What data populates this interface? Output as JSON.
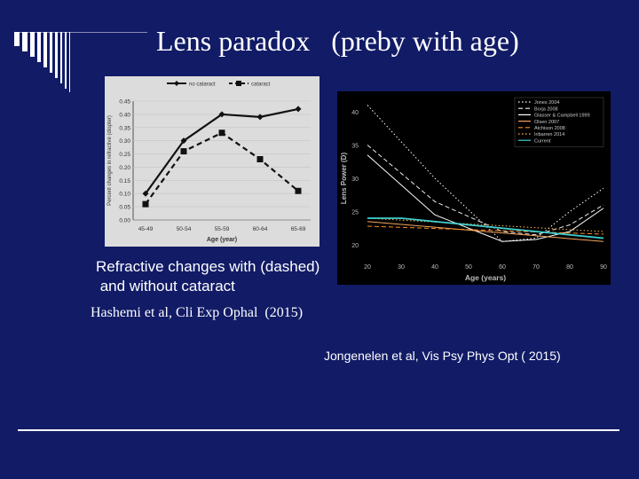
{
  "title": "Lens paradox   (preby with age)",
  "caption": {
    "line1": "Refractive changes with (dashed)",
    "line2": " and without cataract"
  },
  "citation_left": "Hashemi et al, Cli Exp Ophal  (2015)",
  "citation_right": "Jongenelen et al, Vis Psy Phys Opt ( 2015)",
  "colors": {
    "background": "#111b66",
    "text": "#ffffff",
    "chart1_bg": "#dcdcdc",
    "chart2_bg": "#000000"
  },
  "chart_data": [
    {
      "type": "line",
      "title": "",
      "xlabel": "Age (year)",
      "ylabel": "Percent changes in refractive (diopter)",
      "categories": [
        "45-49",
        "50-54",
        "55-59",
        "60-64",
        "65-69"
      ],
      "ylim": [
        0,
        0.45
      ],
      "yticks": [
        0.0,
        0.05,
        0.1,
        0.15,
        0.2,
        0.25,
        0.3,
        0.35,
        0.4,
        0.45
      ],
      "legend_position": "top",
      "series": [
        {
          "name": "no cataract",
          "style": "solid",
          "marker": "diamond",
          "color": "#111111",
          "values": [
            0.1,
            0.3,
            0.4,
            0.39,
            0.42
          ]
        },
        {
          "name": "cataract",
          "style": "dashed",
          "marker": "square",
          "color": "#111111",
          "values": [
            0.06,
            0.26,
            0.33,
            0.23,
            0.11
          ]
        }
      ]
    },
    {
      "type": "line",
      "title": "",
      "xlabel": "Age (years)",
      "ylabel": "Lens Power (D)",
      "xlim": [
        20,
        90
      ],
      "xticks": [
        20,
        30,
        40,
        50,
        60,
        70,
        80,
        90
      ],
      "ylim": [
        18,
        42
      ],
      "yticks": [
        20,
        25,
        30,
        35,
        40
      ],
      "legend_position": "top-right",
      "series": [
        {
          "name": "Jones 2004",
          "color": "#ffffff",
          "style": "dotted",
          "x": [
            20,
            40,
            60,
            70,
            80,
            90
          ],
          "y": [
            41,
            30,
            20.5,
            21,
            25,
            28.5
          ]
        },
        {
          "name": "Borja 2008",
          "color": "#eeeeee",
          "style": "dashed",
          "x": [
            20,
            40,
            60,
            70,
            80,
            90
          ],
          "y": [
            35,
            26.5,
            22,
            21.5,
            23,
            26
          ]
        },
        {
          "name": "Glasser & Campbell 1999",
          "color": "#ffffff",
          "style": "solid",
          "x": [
            20,
            40,
            60,
            70,
            80,
            90
          ],
          "y": [
            33.5,
            24.5,
            20.5,
            20.8,
            22,
            25.5
          ]
        },
        {
          "name": "Olsen 2007",
          "color": "#f4a460",
          "style": "solid",
          "x": [
            20,
            90
          ],
          "y": [
            23.5,
            20.5
          ]
        },
        {
          "name": "Atchison 2008",
          "color": "#ff8c1a",
          "style": "dashed",
          "x": [
            20,
            90
          ],
          "y": [
            22.8,
            21.6
          ]
        },
        {
          "name": "Iribarren 2014",
          "color": "#ffb84d",
          "style": "dotted",
          "x": [
            20,
            90
          ],
          "y": [
            24,
            22
          ]
        },
        {
          "name": "Current",
          "color": "#40d0d0",
          "style": "solid",
          "x": [
            20,
            30,
            40,
            50,
            60,
            70,
            80,
            90
          ],
          "y": [
            24,
            24,
            23.5,
            23,
            22.5,
            22,
            21.5,
            21
          ]
        }
      ]
    }
  ]
}
